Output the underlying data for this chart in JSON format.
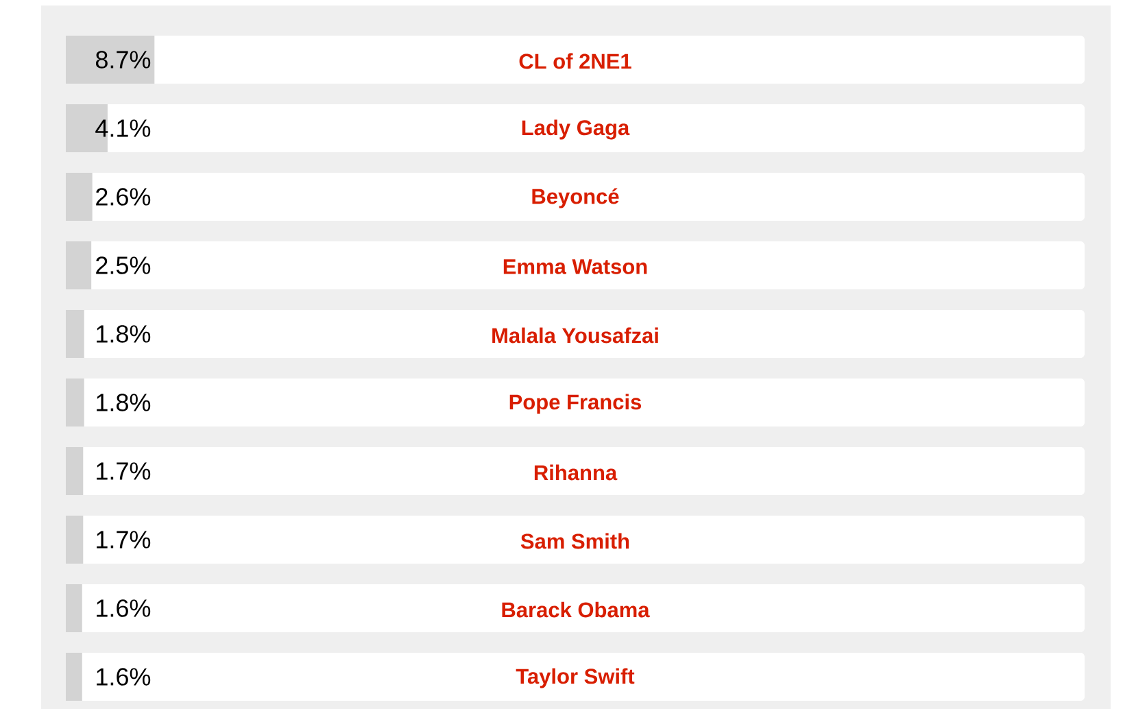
{
  "chart_data": {
    "type": "bar",
    "orientation": "horizontal",
    "categories": [
      "CL of 2NE1",
      "Lady Gaga",
      "Beyoncé",
      "Emma Watson",
      "Malala Yousafzai",
      "Pope Francis",
      "Rihanna",
      "Sam Smith",
      "Barack Obama",
      "Taylor Swift"
    ],
    "values": [
      8.7,
      4.1,
      2.6,
      2.5,
      1.8,
      1.8,
      1.7,
      1.7,
      1.6,
      1.6
    ],
    "value_labels": [
      "8.7%",
      "4.1%",
      "2.6%",
      "2.5%",
      "1.8%",
      "1.8%",
      "1.7%",
      "1.7%",
      "1.6%",
      "1.6%"
    ],
    "color": "#d3d3d3",
    "xlim": [
      0,
      100
    ],
    "tick_labels": "y"
  }
}
